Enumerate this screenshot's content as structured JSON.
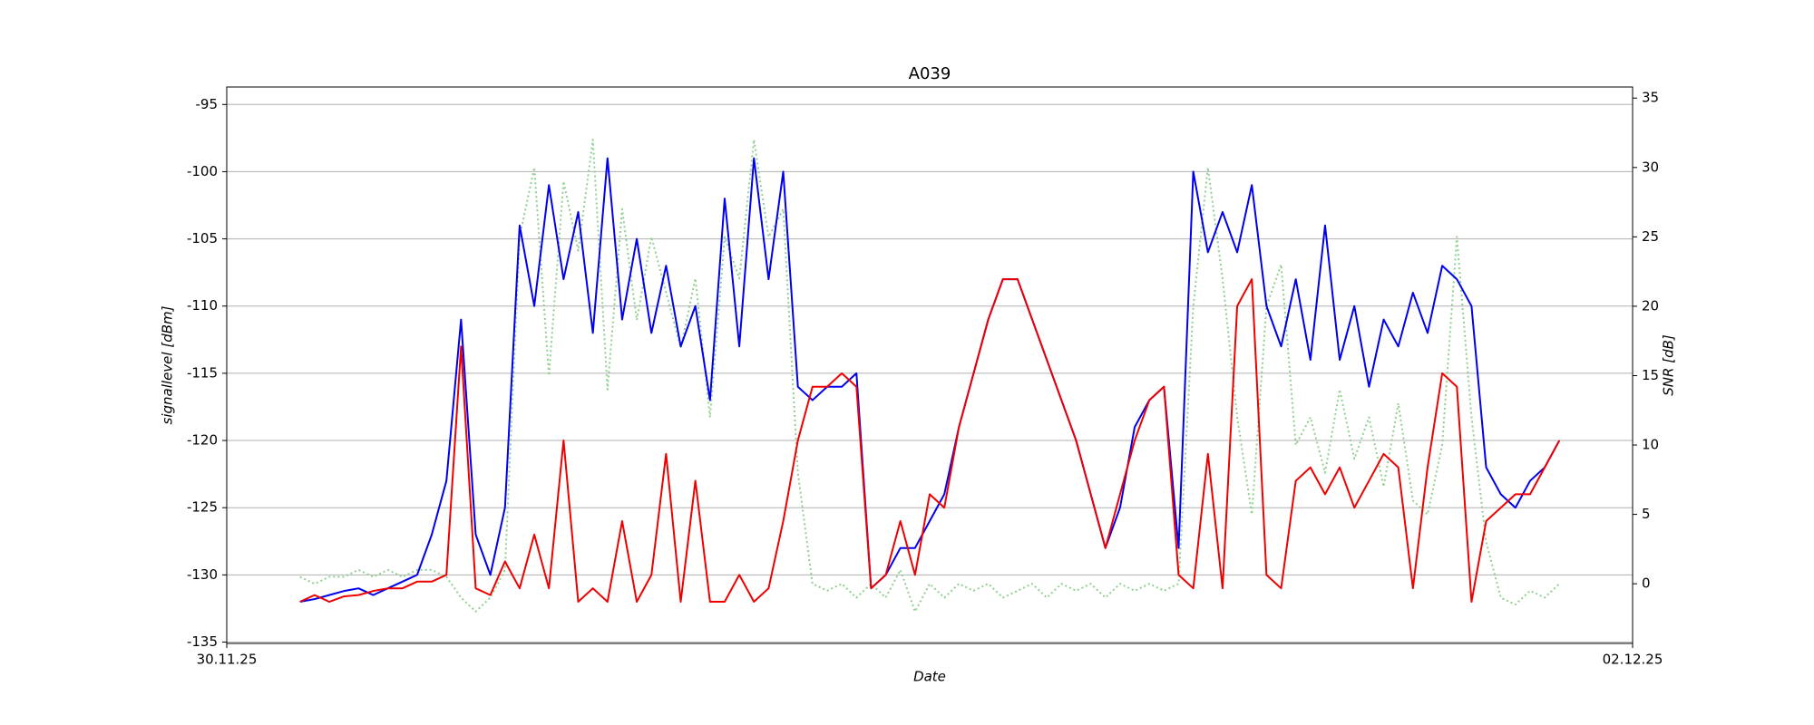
{
  "chart_data": {
    "type": "line",
    "title": "A039",
    "x_label": "Date",
    "y_label": "signallevel [dBm]",
    "y2_label": "SNR [dB]",
    "x": [
      2.5,
      3,
      3.5,
      4,
      4.5,
      5,
      5.5,
      6,
      6.5,
      7,
      7.5,
      8,
      8.5,
      9,
      9.5,
      10,
      10.5,
      11,
      11.5,
      12,
      12.5,
      13,
      13.5,
      14,
      14.5,
      15,
      15.5,
      16,
      16.5,
      17,
      17.5,
      18,
      18.5,
      19,
      19.5,
      20,
      20.5,
      21,
      21.5,
      22,
      22.5,
      23,
      23.5,
      24,
      24.5,
      25,
      25.5,
      26,
      26.5,
      27,
      27.5,
      28,
      28.5,
      29,
      29.5,
      30,
      30.5,
      31,
      31.5,
      32,
      32.5,
      33,
      33.5,
      34,
      34.5,
      35,
      35.5,
      36,
      36.5,
      37,
      37.5,
      38,
      38.5,
      39,
      39.5,
      40,
      40.5,
      41,
      41.5,
      42,
      42.5,
      43,
      43.5,
      44,
      44.5,
      45,
      45.5
    ],
    "xlim": [
      0,
      48
    ],
    "xticks": [
      {
        "value": 0,
        "label": "30.11.25"
      },
      {
        "value": 48,
        "label": "02.12.25"
      }
    ],
    "ylim": [
      -135.1,
      -93.7
    ],
    "yticks": [
      -135,
      -130,
      -125,
      -120,
      -115,
      -110,
      -105,
      -100,
      -95
    ],
    "y2lim": [
      -4.3,
      35.8
    ],
    "y2ticks": [
      0,
      5,
      10,
      15,
      20,
      25,
      30,
      35
    ],
    "grid": true,
    "series": [
      {
        "color": "#90d090",
        "style": "dotted",
        "axis": "y2",
        "values": [
          0.5,
          0,
          0.5,
          0.5,
          1,
          0.5,
          1,
          0.5,
          1,
          1,
          0.5,
          -1,
          -2,
          -1,
          1,
          25,
          30,
          15,
          29,
          24,
          32,
          14,
          27,
          19,
          25,
          21,
          17,
          22,
          12,
          25,
          22,
          32,
          25,
          27,
          8,
          0,
          -0.5,
          0,
          -1,
          0,
          -1,
          1,
          -2,
          0,
          -1,
          0,
          -0.5,
          0,
          -1,
          -0.5,
          0,
          -1,
          0,
          -0.5,
          0,
          -1,
          0,
          -0.5,
          0,
          -0.5,
          0,
          20,
          30,
          22,
          12,
          5,
          20,
          23,
          10,
          12,
          8,
          14,
          9,
          12,
          7,
          13,
          6,
          5,
          10,
          25,
          12,
          3,
          -1,
          -1.5,
          -0.5,
          -1,
          0
        ]
      },
      {
        "color": "#0000ee",
        "style": "solid",
        "axis": "y",
        "values": [
          -132,
          -131.8,
          -131.5,
          -131.2,
          -131,
          -131.5,
          -131,
          -130.5,
          -130,
          -127,
          -123,
          -111,
          -127,
          -130,
          -125,
          -104,
          -110,
          -101,
          -108,
          -103,
          -112,
          -99,
          -111,
          -105,
          -112,
          -107,
          -113,
          -110,
          -117,
          -102,
          -113,
          -99,
          -108,
          -100,
          -116,
          -117,
          -116,
          -116,
          -115,
          -131,
          -130,
          -128,
          -128,
          -126,
          -124,
          -119,
          -115,
          -111,
          -108,
          -108,
          -111,
          -114,
          -117,
          -120,
          -124,
          -128,
          -125,
          -119,
          -117,
          -116,
          -128,
          -100,
          -106,
          -103,
          -106,
          -101,
          -110,
          -113,
          -108,
          -114,
          -104,
          -114,
          -110,
          -116,
          -111,
          -113,
          -109,
          -112,
          -107,
          -108,
          -110,
          -122,
          -124,
          -125,
          -123,
          -122,
          -120
        ]
      },
      {
        "color": "#ee0000",
        "style": "solid",
        "axis": "y",
        "values": [
          -132,
          -131.5,
          -132,
          -131.6,
          -131.5,
          -131.2,
          -131,
          -131,
          -130.5,
          -130.5,
          -130,
          -113,
          -131,
          -131.5,
          -129,
          -131,
          -127,
          -131,
          -120,
          -132,
          -131,
          -132,
          -126,
          -132,
          -130,
          -121,
          -132,
          -123,
          -132,
          -132,
          -130,
          -132,
          -131,
          -126,
          -120,
          -116,
          -116,
          -115,
          -116,
          -131,
          -130,
          -126,
          -130,
          -124,
          -125,
          -119,
          -115,
          -111,
          -108,
          -108,
          -111,
          -114,
          -117,
          -120,
          -124,
          -128,
          -124,
          -120,
          -117,
          -116,
          -130,
          -131,
          -121,
          -131,
          -110,
          -108,
          -130,
          -131,
          -123,
          -122,
          -124,
          -122,
          -125,
          -123,
          -121,
          -122,
          -131,
          -122,
          -115,
          -116,
          -132,
          -126,
          -125,
          -124,
          -124,
          -122,
          -120
        ]
      }
    ]
  }
}
